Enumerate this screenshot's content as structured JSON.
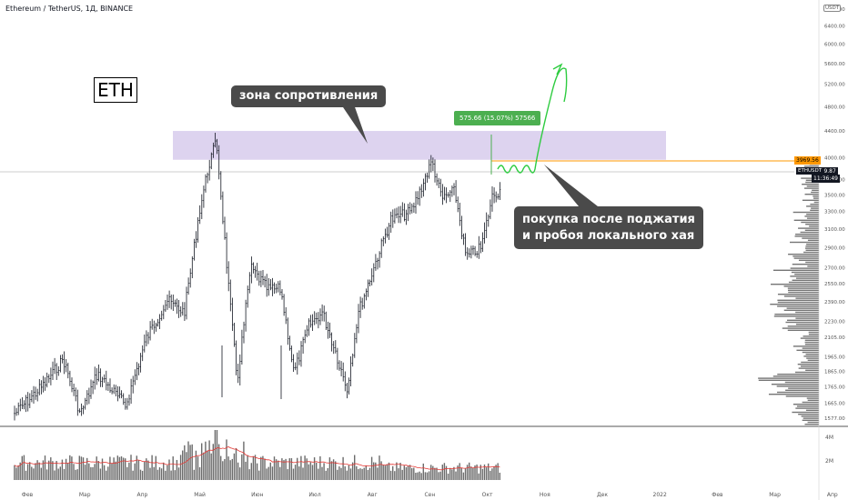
{
  "header": {
    "title": "Ethereum / TetherUS, 1Д, BINANCE",
    "currency": "USDT"
  },
  "logo_text": "ETH",
  "annotations": {
    "resistance_zone_label": "зона сопротивления",
    "buy_label_line1": "покупка после поджатия",
    "buy_label_line2": "и пробоя локального хая",
    "measure_label": "575.66 (15.07%) 57566"
  },
  "price_labels": {
    "resistance": "3969.56",
    "current": "3809.87",
    "timer": "11:36:49",
    "symbol": "ETHUSDT"
  },
  "colors": {
    "resistance_zone": "#d1c4e9",
    "resistance_line": "#ff9800",
    "forecast": "#2ecc40",
    "measure": "#4caf50",
    "volume_ma": "#e53935",
    "candles": "#131722"
  },
  "chart_data": {
    "type": "candlestick",
    "title": "Ethereum / TetherUS, 1Д, BINANCE",
    "price_axis": {
      "scale": "log",
      "ticks": [
        1577,
        1665,
        1765,
        1865,
        1965,
        2105,
        2230,
        2390,
        2550,
        2700,
        2900,
        3100,
        3300,
        3500,
        3700,
        4000,
        4400,
        4800,
        5200,
        5600,
        6000,
        6400,
        6800
      ]
    },
    "time_axis": {
      "ticks": [
        "Фев",
        "Мар",
        "Апр",
        "Май",
        "Июн",
        "Июл",
        "Авг",
        "Сен",
        "Окт",
        "Ноя",
        "Дек",
        "2022",
        "Фев",
        "Мар",
        "Апр"
      ]
    },
    "volume_axis": {
      "ticks": [
        "4M",
        "2M"
      ]
    },
    "resistance_zone": {
      "low": 3969.56,
      "high": 4400
    },
    "current_price": 3809.87,
    "price_path": [
      {
        "date": "2021-01-25",
        "close": 1600
      },
      {
        "date": "2021-02-10",
        "close": 1780
      },
      {
        "date": "2021-02-20",
        "close": 1950
      },
      {
        "date": "2021-03-01",
        "close": 1600
      },
      {
        "date": "2021-03-10",
        "close": 1850
      },
      {
        "date": "2021-03-25",
        "close": 1650
      },
      {
        "date": "2021-04-05",
        "close": 2100
      },
      {
        "date": "2021-04-16",
        "close": 2400
      },
      {
        "date": "2021-04-25",
        "close": 2300
      },
      {
        "date": "2021-05-03",
        "close": 3300
      },
      {
        "date": "2021-05-08",
        "close": 3900
      },
      {
        "date": "2021-05-12",
        "close": 4250
      },
      {
        "date": "2021-05-19",
        "close": 2400
      },
      {
        "date": "2021-05-23",
        "close": 1800
      },
      {
        "date": "2021-05-30",
        "close": 2700
      },
      {
        "date": "2021-06-08",
        "close": 2500
      },
      {
        "date": "2021-06-15",
        "close": 2500
      },
      {
        "date": "2021-06-22",
        "close": 1850
      },
      {
        "date": "2021-06-30",
        "close": 2200
      },
      {
        "date": "2021-07-07",
        "close": 2300
      },
      {
        "date": "2021-07-14",
        "close": 2000
      },
      {
        "date": "2021-07-20",
        "close": 1750
      },
      {
        "date": "2021-07-26",
        "close": 2300
      },
      {
        "date": "2021-08-05",
        "close": 2800
      },
      {
        "date": "2021-08-12",
        "close": 3200
      },
      {
        "date": "2021-08-23",
        "close": 3300
      },
      {
        "date": "2021-09-03",
        "close": 3950
      },
      {
        "date": "2021-09-08",
        "close": 3450
      },
      {
        "date": "2021-09-15",
        "close": 3550
      },
      {
        "date": "2021-09-21",
        "close": 2800
      },
      {
        "date": "2021-09-29",
        "close": 2900
      },
      {
        "date": "2021-10-05",
        "close": 3500
      },
      {
        "date": "2021-10-12",
        "close": 3600
      },
      {
        "date": "2021-10-20",
        "close": 3900
      },
      {
        "date": "2021-10-26",
        "close": 3850
      }
    ],
    "forecast_path": [
      {
        "date": "2021-10-26",
        "close": 3850
      },
      {
        "date": "2021-11-02",
        "close": 3900
      },
      {
        "date": "2021-11-08",
        "close": 4500
      },
      {
        "date": "2021-11-14",
        "close": 5200
      },
      {
        "date": "2021-11-17",
        "close": 5600
      },
      {
        "date": "2021-11-19",
        "close": 5000
      }
    ],
    "volume_profile_levels": [
      1765,
      1865,
      1965,
      2105,
      2230,
      2390,
      2550,
      2700,
      2900,
      3100,
      3300,
      3500,
      3700
    ]
  }
}
